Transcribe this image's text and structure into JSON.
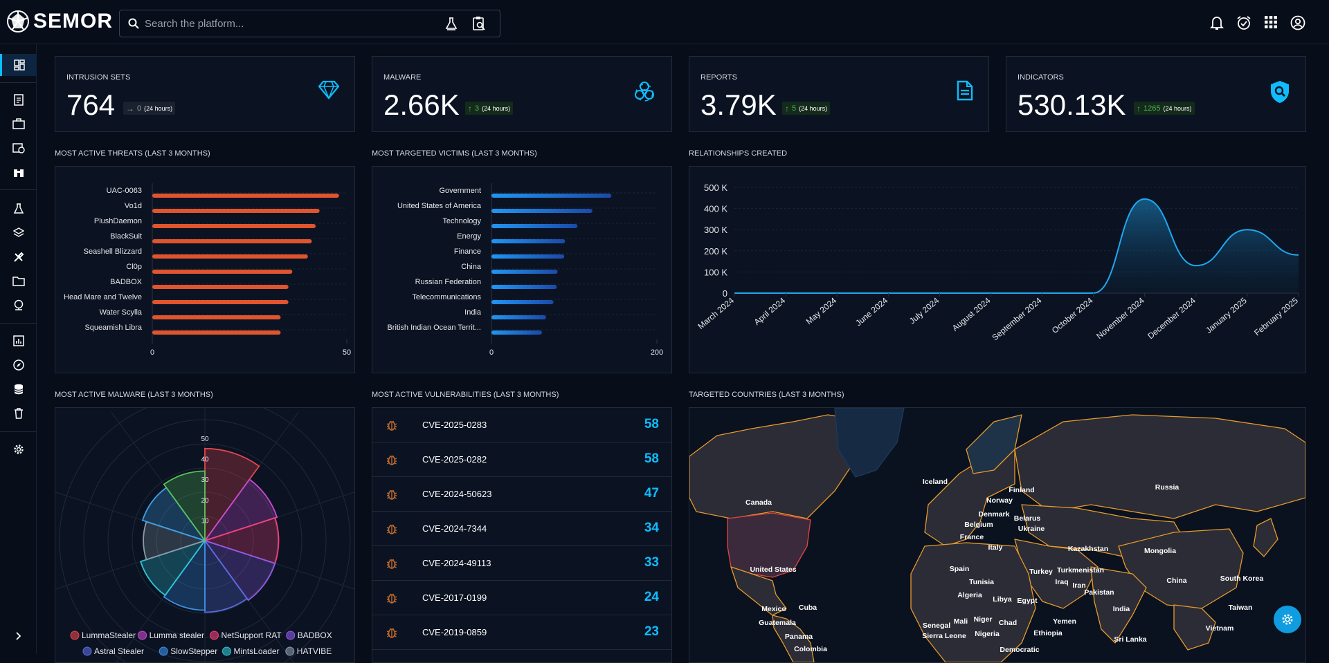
{
  "app": {
    "name": "SEMOR"
  },
  "search": {
    "placeholder": "Search the platform..."
  },
  "kpis": [
    {
      "label": "INTRUSION SETS",
      "value": "764",
      "delta": "0",
      "delta_dir": "flat",
      "period": "(24 hours)",
      "icon": "diamond-icon"
    },
    {
      "label": "MALWARE",
      "value": "2.66K",
      "delta": "3",
      "delta_dir": "up",
      "period": "(24 hours)",
      "icon": "biohazard-icon"
    },
    {
      "label": "REPORTS",
      "value": "3.79K",
      "delta": "5",
      "delta_dir": "up",
      "period": "(24 hours)",
      "icon": "document-icon"
    },
    {
      "label": "INDICATORS",
      "value": "530.13K",
      "delta": "1265",
      "delta_dir": "up",
      "period": "(24 hours)",
      "icon": "shield-search-icon"
    }
  ],
  "sections": {
    "threats": "MOST ACTIVE THREATS (LAST 3 MONTHS)",
    "victims": "MOST TARGETED VICTIMS (LAST 3 MONTHS)",
    "relationships": "RELATIONSHIPS CREATED",
    "malware": "MOST ACTIVE MALWARE (LAST 3 MONTHS)",
    "vulnerabilities": "MOST ACTIVE VULNERABILITIES (LAST 3 MONTHS)",
    "countries": "TARGETED COUNTRIES (LAST 3 MONTHS)"
  },
  "colors": {
    "accent": "#0fbcff",
    "threat_bar": "#e0542e",
    "victim_bar": "#1e78d6",
    "up": "#4caf50"
  },
  "chart_data": [
    {
      "type": "bar",
      "orientation": "horizontal",
      "categories": [
        "UAC-0063",
        "Vo1d",
        "PlushDaemon",
        "BlackSuit",
        "Seashell Blizzard",
        "Cl0p",
        "BADBOX",
        "Head Mare and Twelve",
        "Water Scylla",
        "Squeamish Libra"
      ],
      "values": [
        48,
        43,
        42,
        41,
        40,
        36,
        35,
        35,
        33,
        33
      ],
      "xlim": [
        0,
        50
      ],
      "xticks": [
        "0",
        "50"
      ]
    },
    {
      "type": "bar",
      "orientation": "horizontal",
      "categories": [
        "Government",
        "United States of America",
        "Technology",
        "Energy",
        "Finance",
        "China",
        "Russian Federation",
        "Telecommunications",
        "India",
        "British Indian Ocean Territ..."
      ],
      "values": [
        145,
        122,
        104,
        89,
        88,
        80,
        79,
        75,
        66,
        61
      ],
      "xlim": [
        0,
        200
      ],
      "xticks": [
        "0",
        "200"
      ]
    },
    {
      "type": "area",
      "x": [
        "March 2024",
        "April 2024",
        "May 2024",
        "June 2024",
        "July 2024",
        "August 2024",
        "September 2024",
        "October 2024",
        "November 2024",
        "December 2024",
        "January 2025",
        "February 2025"
      ],
      "values": [
        0,
        0,
        0,
        0,
        0,
        0,
        0,
        0,
        445000,
        130000,
        300000,
        180000
      ],
      "ylim": [
        0,
        500000
      ],
      "yticks": [
        "0",
        "100 K",
        "200 K",
        "300 K",
        "400 K",
        "500 K"
      ]
    },
    {
      "type": "polar-area",
      "rticks": [
        "10",
        "20",
        "30",
        "40",
        "50"
      ],
      "rlim": [
        0,
        50
      ],
      "series": [
        {
          "name": "LummaStealer",
          "value": 45,
          "color": "#e8464e"
        },
        {
          "name": "Lumma stealer",
          "value": 37,
          "color": "#c94ad0"
        },
        {
          "name": "NetSupport RAT",
          "value": 36,
          "color": "#f43f7a"
        },
        {
          "name": "BADBOX",
          "value": 36,
          "color": "#8f5ae6"
        },
        {
          "name": "Astral Stealer",
          "value": 35,
          "color": "#5a6be0"
        },
        {
          "name": "SlowStepper",
          "value": 34,
          "color": "#3b8fe8"
        },
        {
          "name": "MintsLoader",
          "value": 33,
          "color": "#2fc6d6"
        },
        {
          "name": "HATVIBE",
          "value": 30,
          "color": "#8a9aa8"
        },
        {
          "name": "",
          "value": 32,
          "color": "#3fa0ea"
        },
        {
          "name": "",
          "value": 34,
          "color": "#56c05a"
        }
      ]
    }
  ],
  "vulnerabilities": [
    {
      "name": "CVE-2025-0283",
      "count": "58"
    },
    {
      "name": "CVE-2025-0282",
      "count": "58"
    },
    {
      "name": "CVE-2024-50623",
      "count": "47"
    },
    {
      "name": "CVE-2024-7344",
      "count": "34"
    },
    {
      "name": "CVE-2024-49113",
      "count": "33"
    },
    {
      "name": "CVE-2017-0199",
      "count": "24"
    },
    {
      "name": "CVE-2019-0859",
      "count": "23"
    }
  ],
  "map_labels": [
    "Canada",
    "Iceland",
    "Finland",
    "Norway",
    "Russia",
    "Denmark",
    "Belarus",
    "Belgium",
    "Ukraine",
    "France",
    "Italy",
    "Kazakhstan",
    "Mongolia",
    "Spain",
    "Turkey",
    "Turkmenistan",
    "United States",
    "Tunisia",
    "Iraq",
    "Iran",
    "China",
    "South Korea",
    "Algeria",
    "Libya",
    "Egypt",
    "Pakistan",
    "Mexico",
    "Cuba",
    "India",
    "Taiwan",
    "Guatemala",
    "Senegal",
    "Mali",
    "Niger",
    "Chad",
    "Yemen",
    "Vietnam",
    "Panama",
    "Sierra Leone",
    "Nigeria",
    "Ethiopia",
    "Sri Lanka",
    "Colombia",
    "Democratic"
  ]
}
